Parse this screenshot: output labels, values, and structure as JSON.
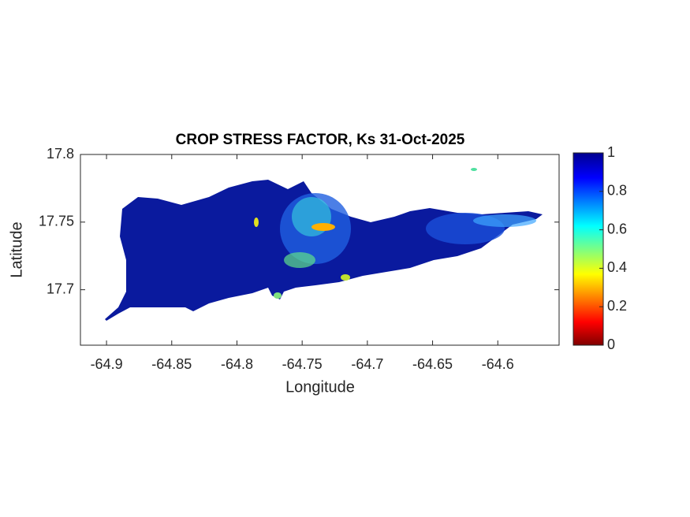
{
  "chart_data": {
    "type": "map",
    "title": "CROP STRESS FACTOR, Ks  31-Oct-2025",
    "x_label": "Longitude",
    "y_label": "Latitude",
    "xlim": [
      -64.92,
      -64.553
    ],
    "ylim": [
      17.659,
      17.8
    ],
    "xticks": [
      -64.9,
      -64.85,
      -64.8,
      -64.75,
      -64.7,
      -64.65,
      -64.6
    ],
    "yticks": [
      17.7,
      17.75,
      17.8
    ],
    "colorbar": {
      "lim": [
        0,
        1
      ],
      "ticks": [
        0,
        0.2,
        0.4,
        0.6,
        0.8,
        1
      ]
    }
  }
}
